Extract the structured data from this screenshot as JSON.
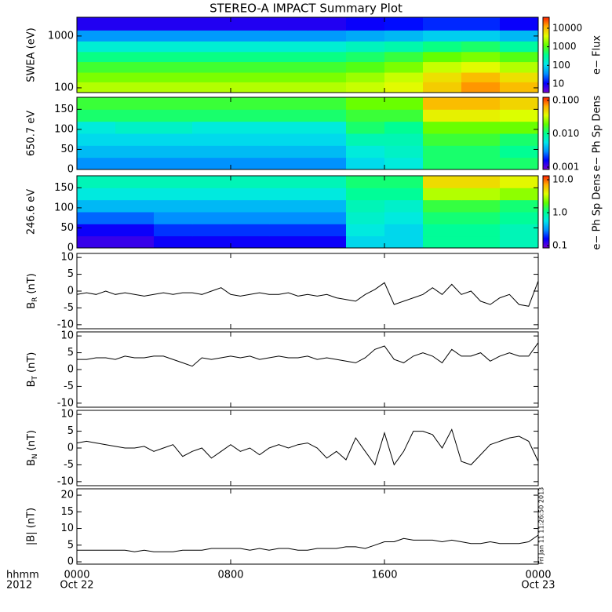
{
  "title": "STEREO-A IMPACT Summary Plot",
  "timestamp": "Fri Jan 11 11:26:50 2013",
  "xaxis": {
    "xlim": [
      0,
      24
    ],
    "xticks": [
      {
        "value": 0,
        "label": "0000"
      },
      {
        "value": 8,
        "label": "0800"
      },
      {
        "value": 16,
        "label": "1600"
      },
      {
        "value": 24,
        "label": "0000"
      }
    ],
    "dates": [
      "Oct 22",
      null,
      null,
      "Oct 23"
    ],
    "corner": [
      "hhmm",
      "2012"
    ]
  },
  "chart_data": [
    {
      "type": "heatmap",
      "ylabel": "SWEA (eV)",
      "ylog": true,
      "ylim": [
        81,
        2300
      ],
      "yticks": [
        100,
        1000
      ],
      "xbins": [
        0,
        2,
        4,
        6,
        8,
        10,
        12,
        14,
        16,
        18,
        20,
        22,
        24
      ],
      "ybins": [
        81,
        130,
        200,
        320,
        500,
        800,
        1300,
        2300
      ],
      "values": [
        [
          2500,
          2500,
          2500,
          2500,
          2500,
          2500,
          2500,
          3000,
          4000,
          8000,
          15000,
          10000
        ],
        [
          1500,
          1500,
          1500,
          1500,
          1500,
          1500,
          1500,
          2000,
          3000,
          6000,
          10000,
          6000
        ],
        [
          800,
          800,
          800,
          800,
          800,
          800,
          800,
          1000,
          1500,
          3000,
          4000,
          2500
        ],
        [
          400,
          400,
          400,
          400,
          400,
          400,
          400,
          500,
          700,
          1200,
          1500,
          1000
        ],
        [
          150,
          150,
          150,
          150,
          150,
          150,
          150,
          200,
          250,
          400,
          500,
          300
        ],
        [
          40,
          40,
          40,
          40,
          40,
          40,
          40,
          50,
          60,
          80,
          80,
          60
        ],
        [
          8,
          8,
          8,
          8,
          8,
          8,
          8,
          10,
          12,
          15,
          15,
          10
        ]
      ],
      "clim": [
        3.4,
        39000
      ],
      "cticks": [
        10,
        100,
        1000,
        10000
      ],
      "clabel": "e− Flux",
      "colormap": [
        "#7a00d0",
        "#0000ff",
        "#0090ff",
        "#00e8e8",
        "#00ff90",
        "#60ff00",
        "#e0ff00",
        "#ffb000",
        "#ff2000"
      ]
    },
    {
      "type": "heatmap",
      "ylabel": "650.7 eV",
      "ylog": false,
      "ylim": [
        0,
        180
      ],
      "yticks": [
        0,
        50,
        100,
        150
      ],
      "xbins": [
        0,
        2,
        4,
        6,
        8,
        10,
        12,
        14,
        16,
        18,
        20,
        22,
        24
      ],
      "ybins": [
        0,
        30,
        60,
        90,
        120,
        150,
        180
      ],
      "values": [
        [
          0.003,
          0.003,
          0.003,
          0.003,
          0.003,
          0.003,
          0.003,
          0.005,
          0.006,
          0.012,
          0.012,
          0.012
        ],
        [
          0.004,
          0.004,
          0.004,
          0.004,
          0.004,
          0.004,
          0.004,
          0.006,
          0.007,
          0.012,
          0.012,
          0.01
        ],
        [
          0.005,
          0.005,
          0.005,
          0.005,
          0.005,
          0.005,
          0.005,
          0.008,
          0.008,
          0.015,
          0.015,
          0.012
        ],
        [
          0.006,
          0.007,
          0.007,
          0.006,
          0.006,
          0.006,
          0.006,
          0.012,
          0.01,
          0.02,
          0.02,
          0.02
        ],
        [
          0.012,
          0.012,
          0.012,
          0.012,
          0.012,
          0.012,
          0.012,
          0.015,
          0.015,
          0.04,
          0.04,
          0.035
        ],
        [
          0.015,
          0.015,
          0.015,
          0.015,
          0.015,
          0.015,
          0.015,
          0.02,
          0.02,
          0.06,
          0.06,
          0.05
        ]
      ],
      "clim": [
        0.00085,
        0.124
      ],
      "cticks": [
        0.001,
        {
          "value": 0.01,
          "label": "0.010"
        },
        {
          "value": 0.1,
          "label": "0.100"
        }
      ],
      "clabel": "e− Ph Sp Dens",
      "colormap": [
        "#7a00d0",
        "#0000ff",
        "#0090ff",
        "#00e8e8",
        "#00ff90",
        "#60ff00",
        "#e0ff00",
        "#ffb000",
        "#ff2000"
      ]
    },
    {
      "type": "heatmap",
      "ylabel": "246.6 eV",
      "ylog": false,
      "ylim": [
        0,
        180
      ],
      "yticks": [
        0,
        50,
        100,
        150
      ],
      "xbins": [
        0,
        2,
        4,
        6,
        8,
        10,
        12,
        14,
        16,
        18,
        20,
        22,
        24
      ],
      "ybins": [
        0,
        30,
        60,
        90,
        120,
        150,
        180
      ],
      "values": [
        [
          0.12,
          0.12,
          0.15,
          0.15,
          0.15,
          0.15,
          0.15,
          0.5,
          0.5,
          1.0,
          1.0,
          0.8
        ],
        [
          0.15,
          0.15,
          0.2,
          0.2,
          0.2,
          0.2,
          0.2,
          0.6,
          0.5,
          1.0,
          1.0,
          0.8
        ],
        [
          0.25,
          0.25,
          0.3,
          0.3,
          0.3,
          0.3,
          0.3,
          0.7,
          0.6,
          1.2,
          1.2,
          1.0
        ],
        [
          0.4,
          0.4,
          0.4,
          0.4,
          0.4,
          0.4,
          0.4,
          0.8,
          0.7,
          1.5,
          1.5,
          1.2
        ],
        [
          0.6,
          0.6,
          0.6,
          0.6,
          0.6,
          0.6,
          0.6,
          1.0,
          1.0,
          3.0,
          3.0,
          2.5
        ],
        [
          0.8,
          0.8,
          0.8,
          0.8,
          0.8,
          0.8,
          0.8,
          1.2,
          1.2,
          5.0,
          5.0,
          4.0
        ]
      ],
      "clim": [
        0.085,
        13.2
      ],
      "cticks": [
        0.1,
        {
          "value": 1,
          "label": "1.0"
        },
        {
          "value": 10,
          "label": "10.0"
        }
      ],
      "clabel": "e− Ph Sp Dens",
      "colormap": [
        "#7a00d0",
        "#0000ff",
        "#0090ff",
        "#00e8e8",
        "#00ff90",
        "#60ff00",
        "#e0ff00",
        "#ffb000",
        "#ff2000"
      ]
    },
    {
      "type": "line",
      "ylabel": {
        "base": "B",
        "sub": "R",
        "unit": "(nT)"
      },
      "color": "#000000",
      "ylim": [
        -11.2,
        11.2
      ],
      "yticks": [
        -10,
        -5,
        0,
        5,
        10
      ],
      "x": [
        0,
        0.5,
        1,
        1.5,
        2,
        2.5,
        3,
        3.5,
        4,
        4.5,
        5,
        5.5,
        6,
        6.5,
        7,
        7.5,
        8,
        8.5,
        9,
        9.5,
        10,
        10.5,
        11,
        11.5,
        12,
        12.5,
        13,
        13.5,
        14,
        14.5,
        15,
        15.5,
        16,
        16.5,
        17,
        17.5,
        18,
        18.5,
        19,
        19.5,
        20,
        20.5,
        21,
        21.5,
        22,
        22.5,
        23,
        23.5,
        24
      ],
      "values": [
        -1,
        -0.5,
        -1,
        0,
        -1,
        -0.5,
        -1,
        -1.5,
        -1,
        -0.5,
        -1,
        -0.5,
        -0.5,
        -1,
        0,
        1,
        -1,
        -1.5,
        -1,
        -0.5,
        -1,
        -1,
        -0.5,
        -1.5,
        -1,
        -1.5,
        -1,
        -2,
        -2.5,
        -3,
        -1,
        0.5,
        2.5,
        -4,
        -3,
        -2,
        -1,
        1,
        -1,
        2,
        -1,
        0,
        -3,
        -4,
        -2,
        -1,
        -4,
        -4.5,
        3
      ]
    },
    {
      "type": "line",
      "ylabel": {
        "base": "B",
        "sub": "T",
        "unit": "(nT)"
      },
      "color": "#000000",
      "ylim": [
        -11.2,
        11.2
      ],
      "yticks": [
        -10,
        -5,
        0,
        5,
        10
      ],
      "x": [
        0,
        0.5,
        1,
        1.5,
        2,
        2.5,
        3,
        3.5,
        4,
        4.5,
        5,
        5.5,
        6,
        6.5,
        7,
        7.5,
        8,
        8.5,
        9,
        9.5,
        10,
        10.5,
        11,
        11.5,
        12,
        12.5,
        13,
        13.5,
        14,
        14.5,
        15,
        15.5,
        16,
        16.5,
        17,
        17.5,
        18,
        18.5,
        19,
        19.5,
        20,
        20.5,
        21,
        21.5,
        22,
        22.5,
        23,
        23.5,
        24
      ],
      "values": [
        3,
        3,
        3.5,
        3.5,
        3,
        4,
        3.5,
        3.5,
        4,
        4,
        3,
        2,
        1,
        3.5,
        3,
        3.5,
        4,
        3.5,
        4,
        3,
        3.5,
        4,
        3.5,
        3.5,
        4,
        3,
        3.5,
        3,
        2.5,
        2,
        3.5,
        6,
        7,
        3,
        2,
        4,
        5,
        4,
        2,
        6,
        4,
        4,
        5,
        2.5,
        4,
        5,
        4,
        4,
        8
      ]
    },
    {
      "type": "line",
      "ylabel": {
        "base": "B",
        "sub": "N",
        "unit": "(nT)"
      },
      "color": "#000000",
      "ylim": [
        -11.2,
        11.2
      ],
      "yticks": [
        -10,
        -5,
        0,
        5,
        10
      ],
      "x": [
        0,
        0.5,
        1,
        1.5,
        2,
        2.5,
        3,
        3.5,
        4,
        4.5,
        5,
        5.5,
        6,
        6.5,
        7,
        7.5,
        8,
        8.5,
        9,
        9.5,
        10,
        10.5,
        11,
        11.5,
        12,
        12.5,
        13,
        13.5,
        14,
        14.5,
        15,
        15.5,
        16,
        16.5,
        17,
        17.5,
        18,
        18.5,
        19,
        19.5,
        20,
        20.5,
        21,
        21.5,
        22,
        22.5,
        23,
        23.5,
        24
      ],
      "values": [
        1.5,
        2,
        1.5,
        1,
        0.5,
        0,
        0,
        0.5,
        -1,
        0,
        1,
        -2.5,
        -1,
        0,
        -3,
        -1,
        1,
        -1,
        0,
        -2,
        0,
        1,
        0,
        1,
        1.5,
        0,
        -3,
        -1,
        -3.5,
        3,
        -1,
        -5,
        4.5,
        -5,
        -1,
        5,
        5,
        4,
        0,
        5.5,
        -4,
        -5,
        -2,
        1,
        2,
        3,
        3.5,
        2,
        -4
      ]
    },
    {
      "type": "line",
      "ylabel": "|B| (nT)",
      "color": "#000000",
      "ylim": [
        -0.7,
        21.9
      ],
      "yticks": [
        0,
        5,
        10,
        15,
        20
      ],
      "x": [
        0,
        0.5,
        1,
        1.5,
        2,
        2.5,
        3,
        3.5,
        4,
        4.5,
        5,
        5.5,
        6,
        6.5,
        7,
        7.5,
        8,
        8.5,
        9,
        9.5,
        10,
        10.5,
        11,
        11.5,
        12,
        12.5,
        13,
        13.5,
        14,
        14.5,
        15,
        15.5,
        16,
        16.5,
        17,
        17.5,
        18,
        18.5,
        19,
        19.5,
        20,
        20.5,
        21,
        21.5,
        22,
        22.5,
        23,
        23.5,
        24
      ],
      "values": [
        3.5,
        3.5,
        3.5,
        3.5,
        3.5,
        3.5,
        3,
        3.5,
        3,
        3,
        3,
        3.5,
        3.5,
        3.5,
        4,
        4,
        4,
        4,
        3.5,
        4,
        3.5,
        4,
        4,
        3.5,
        3.5,
        4,
        4,
        4,
        4.5,
        4.5,
        4,
        5,
        6,
        6,
        7,
        6.5,
        6.5,
        6.5,
        6,
        6.5,
        6,
        5.5,
        5.5,
        6,
        5.5,
        5.5,
        5.5,
        6,
        8
      ]
    }
  ]
}
